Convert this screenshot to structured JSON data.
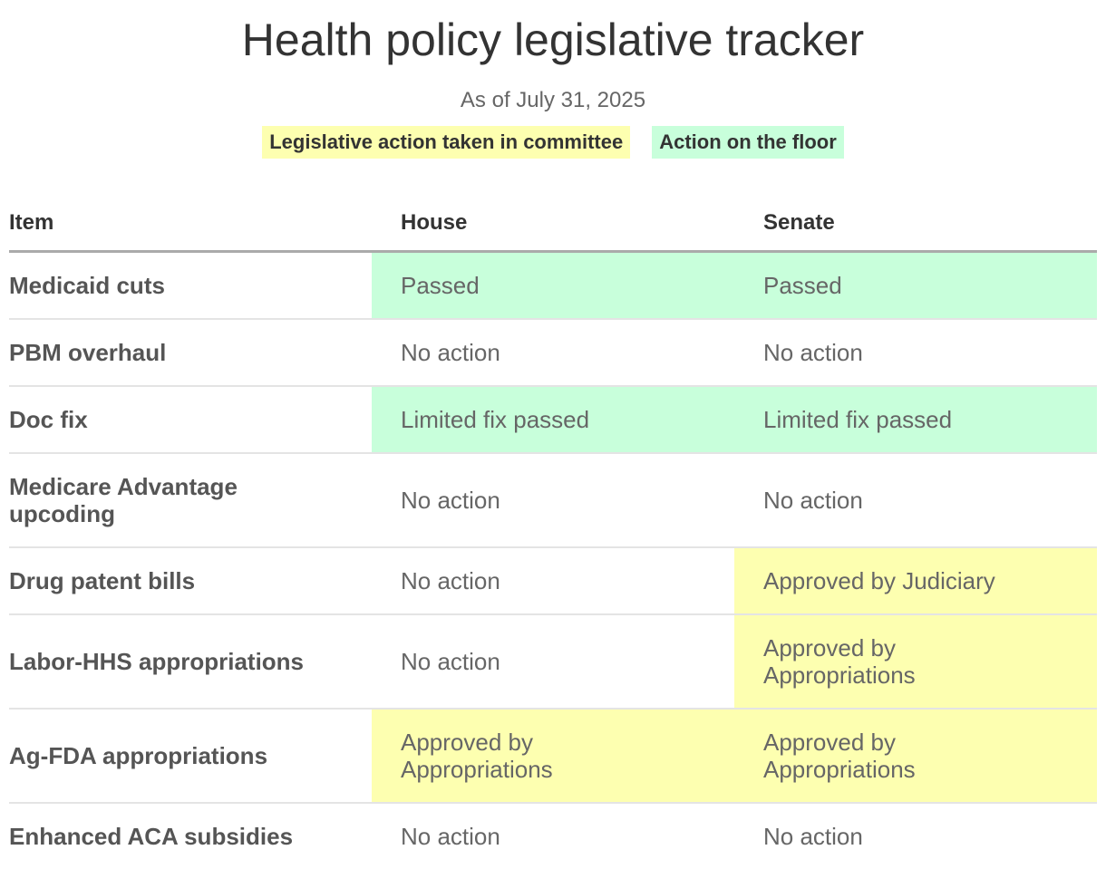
{
  "header": {
    "title": "Health policy legislative tracker",
    "subtitle": "As of July 31, 2025"
  },
  "legend": [
    {
      "label": "Legislative action taken in committee",
      "color": "#fdffb0"
    },
    {
      "label": "Action on the floor",
      "color": "#c8ffdb"
    }
  ],
  "table": {
    "columns": [
      "Item",
      "House",
      "Senate"
    ],
    "rows": [
      [
        {
          "text": "Medicaid cuts"
        },
        {
          "text": "Passed",
          "color": "#c8ffdb"
        },
        {
          "text": "Passed",
          "color": "#c8ffdb"
        }
      ],
      [
        {
          "text": "PBM overhaul"
        },
        {
          "text": "No action"
        },
        {
          "text": "No action"
        }
      ],
      [
        {
          "text": "Doc fix"
        },
        {
          "text": "Limited fix passed",
          "color": "#c8ffdb"
        },
        {
          "text": "Limited fix passed",
          "color": "#c8ffdb"
        }
      ],
      [
        {
          "text": "Medicare Advantage upcoding"
        },
        {
          "text": "No action"
        },
        {
          "text": "No action"
        }
      ],
      [
        {
          "text": "Drug patent bills"
        },
        {
          "text": "No action"
        },
        {
          "text": "Approved by Judiciary",
          "color": "#fdffb0"
        }
      ],
      [
        {
          "text": "Labor-HHS appropriations"
        },
        {
          "text": "No action"
        },
        {
          "text": "Approved by Appropriations",
          "color": "#fdffb0"
        }
      ],
      [
        {
          "text": "Ag-FDA appropriations"
        },
        {
          "text": "Approved by Appropriations",
          "color": "#fdffb0"
        },
        {
          "text": "Approved by Appropriations",
          "color": "#fdffb0"
        }
      ],
      [
        {
          "text": "Enhanced ACA subsidies"
        },
        {
          "text": "No action"
        },
        {
          "text": "No action"
        }
      ]
    ]
  }
}
